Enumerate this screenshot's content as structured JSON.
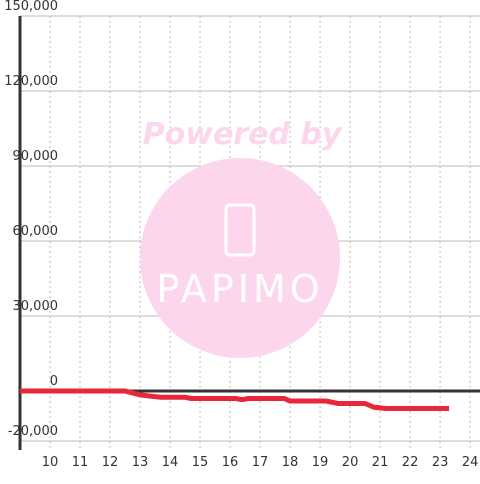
{
  "chart_data": {
    "type": "line",
    "watermark": {
      "line1": "Powered by",
      "line2": "PAPIMO"
    },
    "x": [
      9,
      12.5,
      13,
      13.3,
      13.7,
      14.5,
      14.7,
      16.2,
      16.4,
      16.6,
      17.8,
      18,
      19.2,
      19.6,
      20.5,
      20.8,
      21.2,
      23.3
    ],
    "series": [
      {
        "color": "#e8283a",
        "values": [
          0,
          0,
          -1500,
          -2000,
          -2500,
          -2500,
          -3000,
          -3000,
          -3500,
          -3000,
          -3000,
          -4000,
          -4000,
          -5000,
          -5000,
          -6500,
          -7000,
          -7000
        ]
      }
    ],
    "xlim": [
      9,
      24.33
    ],
    "xticks": [
      10,
      11,
      12,
      13,
      14,
      15,
      16,
      17,
      18,
      19,
      20,
      21,
      22,
      23,
      24
    ],
    "ylim": [
      -23600,
      150000
    ],
    "yticks": [
      {
        "value": -20000,
        "label": "-20,000"
      },
      0,
      {
        "value": 30000,
        "label": "30,000"
      },
      {
        "value": 60000,
        "label": "60,000"
      },
      {
        "value": 90000,
        "label": "90,000"
      },
      {
        "value": 120000,
        "label": "120,000"
      },
      {
        "value": 150000,
        "label": "150,000"
      }
    ],
    "grid": true
  }
}
